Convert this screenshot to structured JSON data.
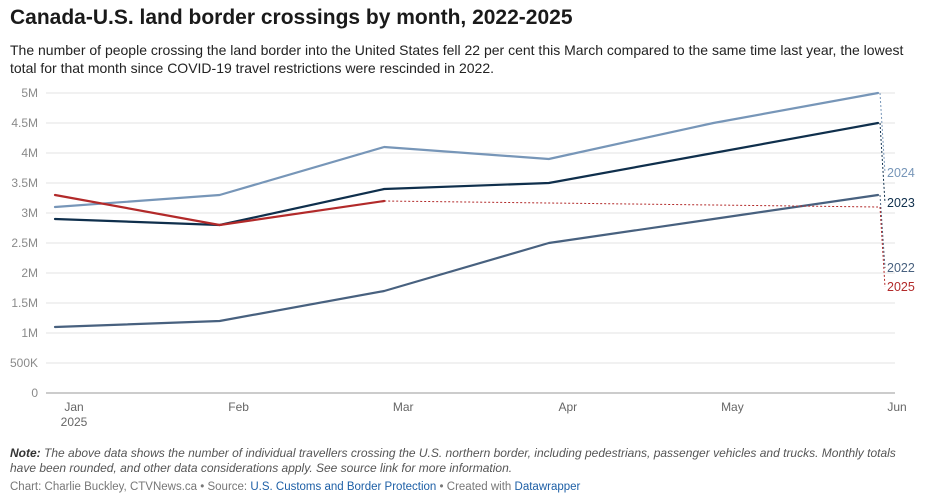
{
  "title": "Canada-U.S. land border crossings by month, 2022-2025",
  "subtitle": "The number of people crossing the land border into the United States fell 22 per cent this March compared to the same time last year, the lowest total for that month since COVID-19 travel restrictions were rescinded in 2022.",
  "notes": {
    "label": "Note:",
    "text": "The above data shows the number of individual travellers crossing the U.S. northern border, including pedestrians, passenger vehicles and trucks. Monthly totals have been rounded, and other data considerations apply. See source link for more information."
  },
  "footer": {
    "chart_by": "Chart: Charlie Buckley, CTVNews.ca",
    "sep1": "•",
    "source_label": "Source:",
    "source_link": "U.S. Customs and Border Protection",
    "sep2": "•",
    "created_label": "Created with",
    "created_link": "Datawrapper"
  },
  "colors": {
    "2022": "#48617f",
    "2023": "#0f2f4c",
    "2024": "#7796b8",
    "2025": "#b22a2a",
    "grid": "#e3e3e3",
    "axis_text": "#8a8a8a"
  },
  "chart_data": {
    "type": "line",
    "x_ticks": [
      {
        "label": "Jan",
        "sublabel": "2025",
        "x": 1
      },
      {
        "label": "Feb",
        "x": 2
      },
      {
        "label": "Mar",
        "x": 3
      },
      {
        "label": "Apr",
        "x": 4
      },
      {
        "label": "May",
        "x": 5
      },
      {
        "label": "Jun",
        "x": 6
      }
    ],
    "xlim": [
      1,
      6.25
    ],
    "ylim": [
      0,
      5000000
    ],
    "y_ticks": [
      {
        "label": "0",
        "value": 0
      },
      {
        "label": "500K",
        "value": 500000
      },
      {
        "label": "1M",
        "value": 1000000
      },
      {
        "label": "1.5M",
        "value": 1500000
      },
      {
        "label": "2M",
        "value": 2000000
      },
      {
        "label": "2.5M",
        "value": 2500000
      },
      {
        "label": "3M",
        "value": 3000000
      },
      {
        "label": "3.5M",
        "value": 3500000
      },
      {
        "label": "4M",
        "value": 4000000
      },
      {
        "label": "4.5M",
        "value": 4500000
      },
      {
        "label": "5M",
        "value": 5000000
      }
    ],
    "grid": true,
    "series": [
      {
        "name": "2022",
        "x": [
          1,
          2,
          3,
          4,
          5,
          6
        ],
        "values": [
          1100000,
          1200000,
          1700000,
          2500000,
          2900000,
          3300000
        ]
      },
      {
        "name": "2023",
        "x": [
          1,
          2,
          3,
          4,
          5,
          6
        ],
        "values": [
          2900000,
          2800000,
          3400000,
          3500000,
          4000000,
          4500000
        ]
      },
      {
        "name": "2024",
        "x": [
          1,
          2,
          3,
          4,
          5,
          6
        ],
        "values": [
          3100000,
          3300000,
          4100000,
          3900000,
          4500000,
          5000000
        ]
      },
      {
        "name": "2025",
        "x": [
          1,
          2,
          3
        ],
        "values": [
          3300000,
          2800000,
          3200000
        ],
        "trend_to": {
          "x": 6,
          "value": 3100000
        }
      }
    ]
  }
}
